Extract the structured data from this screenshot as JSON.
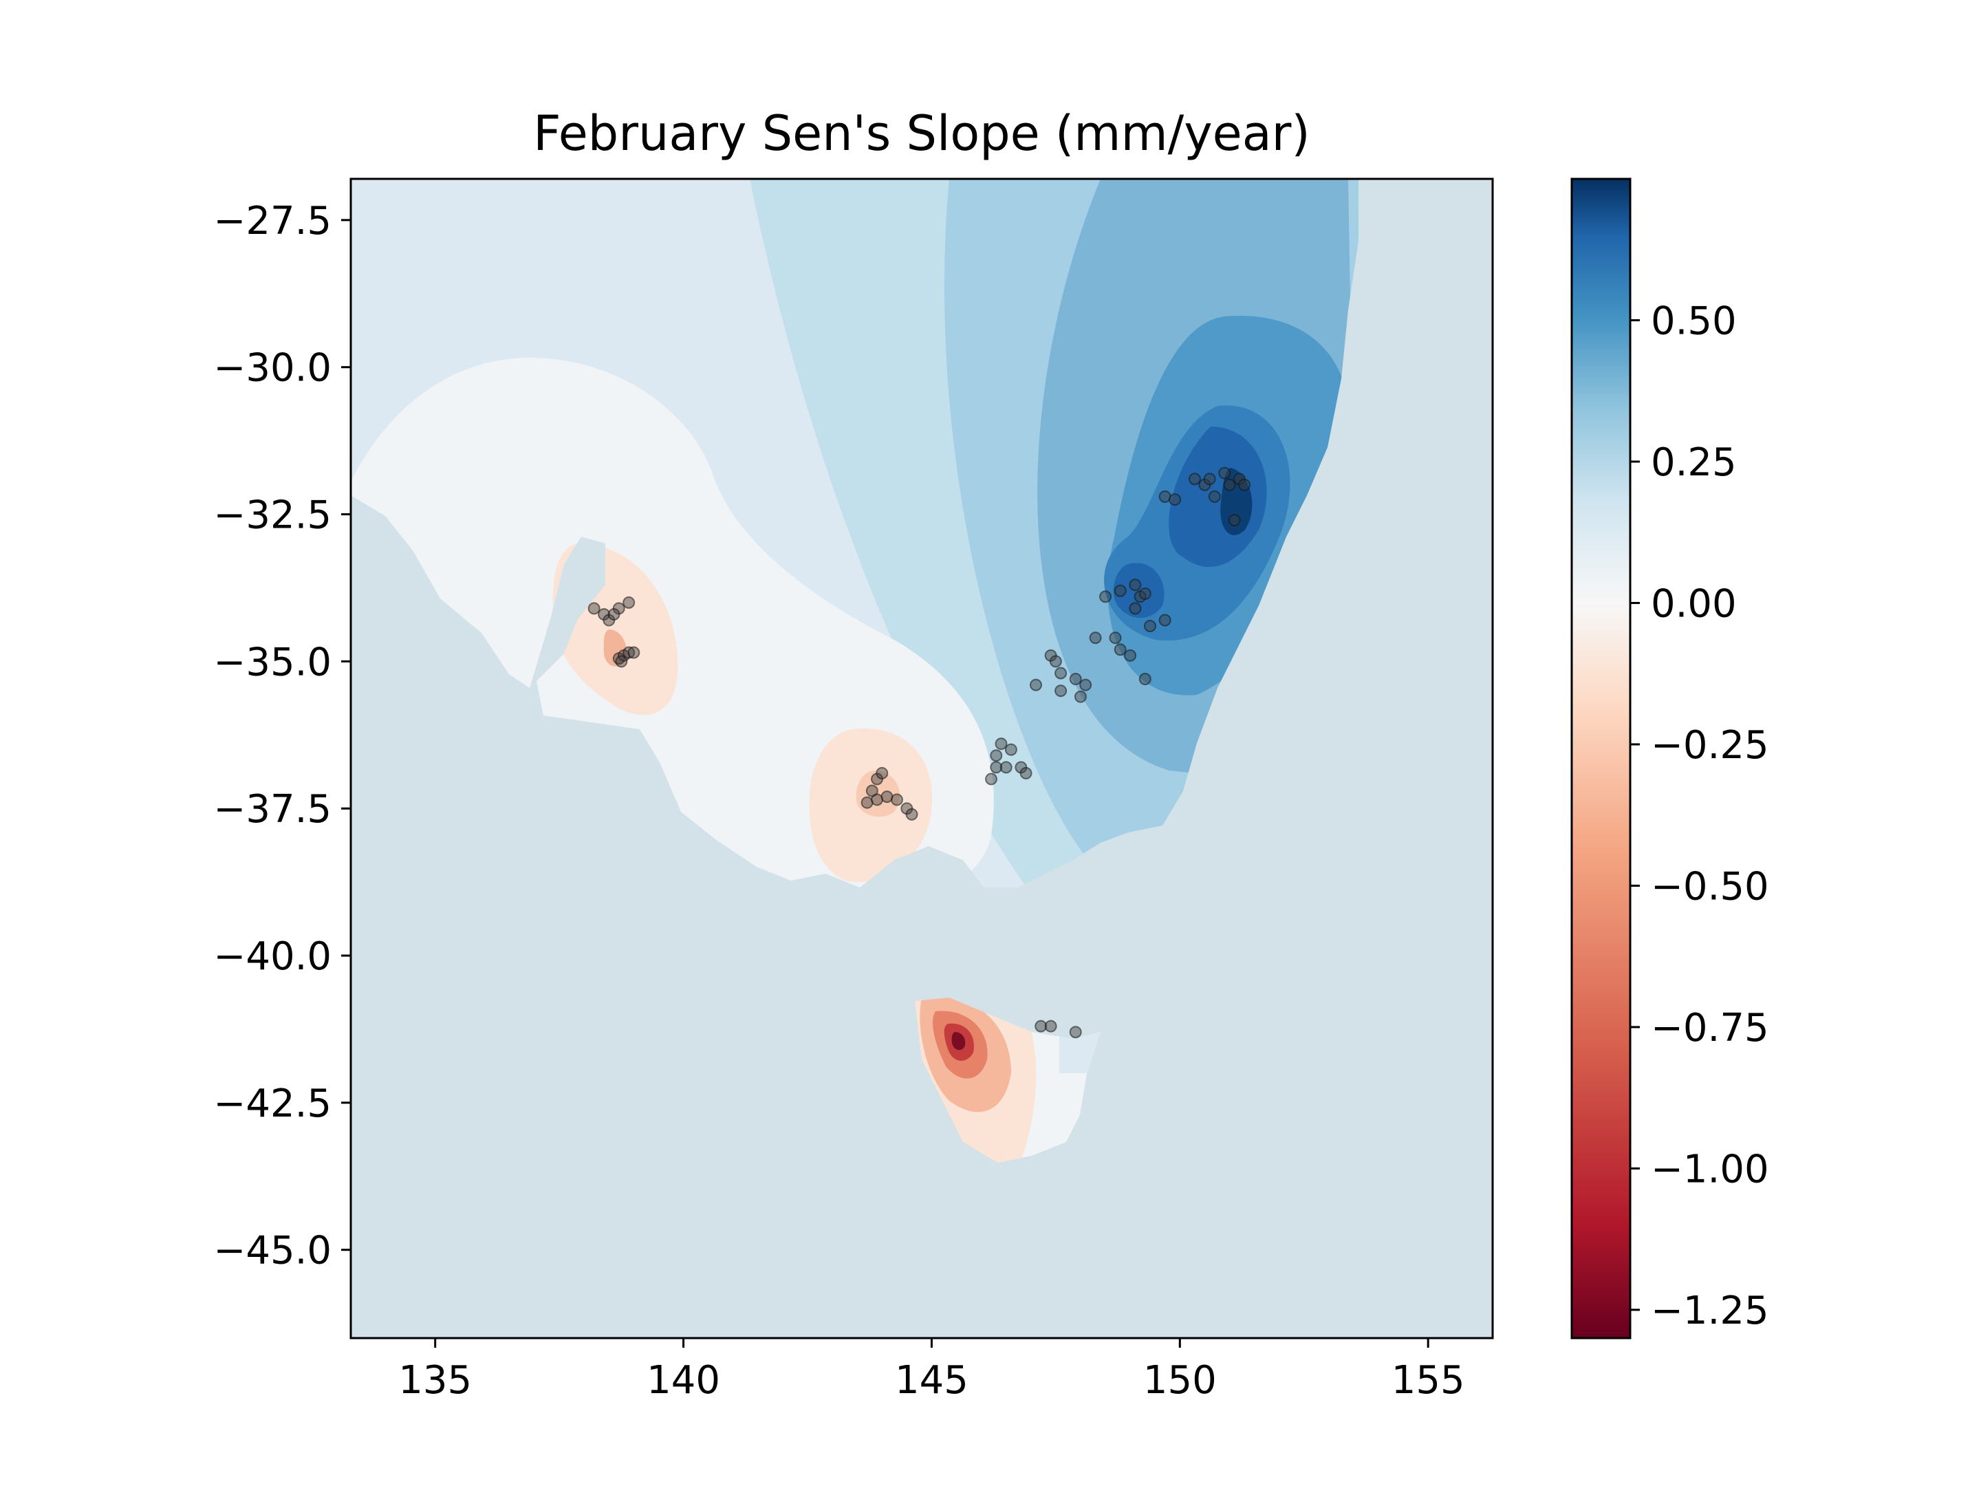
{
  "chart_data": {
    "type": "map",
    "title": "February Sen's Slope (mm/year)",
    "xlabel": "",
    "ylabel": "",
    "xlim": [
      133.3,
      156.3
    ],
    "ylim": [
      -46.5,
      -26.8
    ],
    "x_ticks": [
      135,
      140,
      145,
      150,
      155
    ],
    "y_ticks": [
      -27.5,
      -30.0,
      -32.5,
      -35.0,
      -37.5,
      -40.0,
      -42.5,
      -45.0
    ],
    "x_tick_labels": [
      "135",
      "140",
      "145",
      "150",
      "155"
    ],
    "y_tick_labels": [
      "−27.5",
      "−30.0",
      "−32.5",
      "−35.0",
      "−37.5",
      "−40.0",
      "−42.5",
      "−45.0"
    ],
    "colorbar": {
      "cmap": "RdBu",
      "range": [
        -1.3,
        0.75
      ],
      "ticks": [
        0.5,
        0.25,
        0.0,
        -0.25,
        -0.5,
        -0.75,
        -1.0,
        -1.25
      ],
      "tick_labels": [
        "0.50",
        "0.25",
        "0.00",
        "−0.25",
        "−0.50",
        "−0.75",
        "−1.00",
        "−1.25"
      ]
    },
    "colors": {
      "sea": "#d3e1e8",
      "level_neg_03": "#fbe3d5",
      "level_zero": "#f0f4f7",
      "level_01": "#dce9f2",
      "level_02": "#c2dfec",
      "level_03": "#a5cfe4",
      "level_04": "#7db5d7",
      "level_05": "#4f9ac9",
      "level_06": "#3481bd",
      "level_07": "#2166ac",
      "level_08": "#0b3e72"
    },
    "stations": [
      [
        138.2,
        -34.1
      ],
      [
        138.4,
        -34.2
      ],
      [
        138.5,
        -34.3
      ],
      [
        138.7,
        -34.1
      ],
      [
        138.9,
        -34.0
      ],
      [
        138.6,
        -34.2
      ],
      [
        138.7,
        -34.95
      ],
      [
        138.8,
        -34.9
      ],
      [
        138.9,
        -34.85
      ],
      [
        139.0,
        -34.85
      ],
      [
        138.75,
        -35.0
      ],
      [
        143.9,
        -37.0
      ],
      [
        144.0,
        -36.9
      ],
      [
        143.8,
        -37.2
      ],
      [
        144.1,
        -37.3
      ],
      [
        144.3,
        -37.35
      ],
      [
        143.7,
        -37.4
      ],
      [
        144.5,
        -37.5
      ],
      [
        144.6,
        -37.6
      ],
      [
        143.9,
        -37.35
      ],
      [
        146.3,
        -36.6
      ],
      [
        146.4,
        -36.4
      ],
      [
        146.6,
        -36.5
      ],
      [
        146.3,
        -36.8
      ],
      [
        146.5,
        -36.8
      ],
      [
        146.8,
        -36.8
      ],
      [
        146.9,
        -36.9
      ],
      [
        146.2,
        -37.0
      ],
      [
        147.1,
        -35.4
      ],
      [
        147.4,
        -34.9
      ],
      [
        147.5,
        -35.0
      ],
      [
        147.6,
        -35.2
      ],
      [
        147.6,
        -35.5
      ],
      [
        147.9,
        -35.3
      ],
      [
        148.1,
        -35.4
      ],
      [
        148.0,
        -35.6
      ],
      [
        148.3,
        -34.6
      ],
      [
        148.7,
        -34.6
      ],
      [
        148.8,
        -34.8
      ],
      [
        149.0,
        -34.9
      ],
      [
        149.3,
        -35.3
      ],
      [
        148.5,
        -33.9
      ],
      [
        148.8,
        -33.8
      ],
      [
        149.1,
        -33.7
      ],
      [
        149.2,
        -33.9
      ],
      [
        149.3,
        -33.85
      ],
      [
        149.1,
        -34.1
      ],
      [
        149.4,
        -34.4
      ],
      [
        149.7,
        -34.3
      ],
      [
        149.7,
        -32.2
      ],
      [
        149.9,
        -32.25
      ],
      [
        150.3,
        -31.9
      ],
      [
        150.5,
        -32.0
      ],
      [
        150.6,
        -31.9
      ],
      [
        150.7,
        -32.2
      ],
      [
        150.9,
        -31.8
      ],
      [
        151.0,
        -32.0
      ],
      [
        151.2,
        -31.9
      ],
      [
        151.3,
        -32.0
      ],
      [
        151.1,
        -32.6
      ],
      [
        147.2,
        -41.2
      ],
      [
        147.4,
        -41.2
      ],
      [
        147.9,
        -41.3
      ]
    ]
  }
}
